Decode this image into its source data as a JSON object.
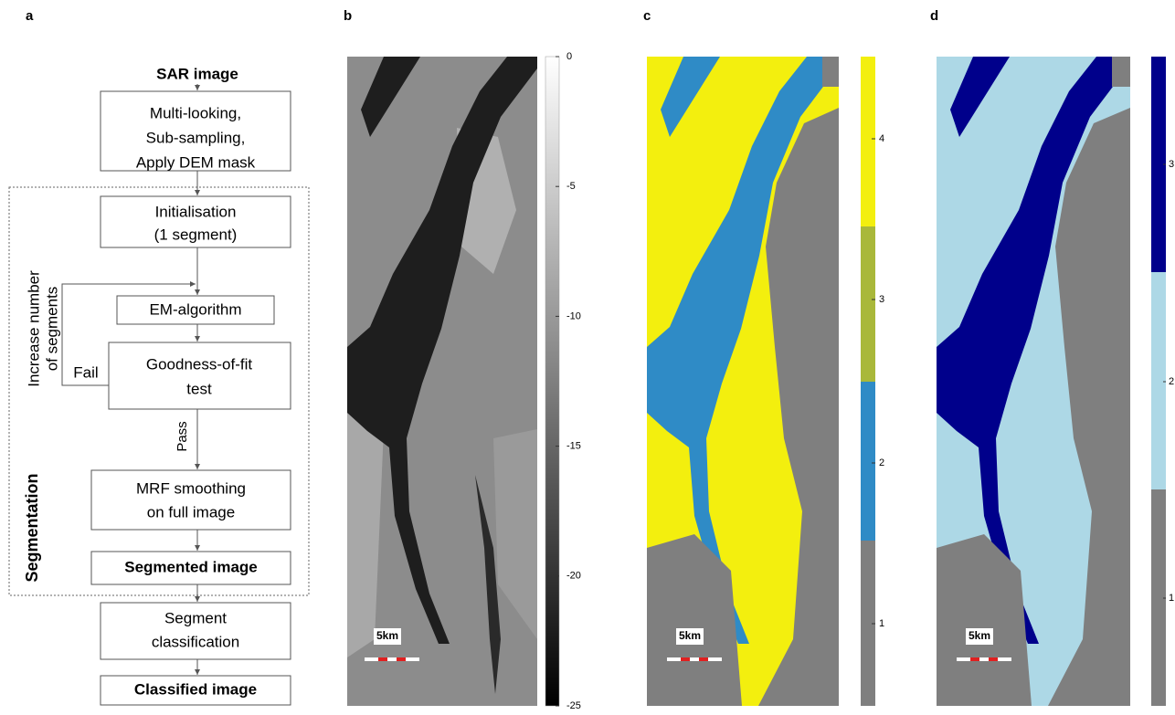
{
  "panel_labels": [
    "a",
    "b",
    "c",
    "d"
  ],
  "flowchart": {
    "input": "SAR image",
    "nodes": [
      {
        "lines": [
          "Multi-looking,",
          "Sub-sampling,",
          "Apply DEM mask"
        ]
      },
      {
        "lines": [
          "Initialisation",
          "(1 segment)"
        ]
      },
      {
        "lines": [
          "EM-algorithm"
        ]
      },
      {
        "lines": [
          "Goodness-of-fit",
          "test"
        ]
      },
      {
        "lines": [
          "MRF smoothing",
          "on full image"
        ]
      },
      {
        "lines": [
          "Segmented image"
        ]
      },
      {
        "lines": [
          "Segment",
          "classification"
        ]
      },
      {
        "lines": [
          "Classified image"
        ]
      }
    ],
    "loop_label": [
      "Increase number",
      "of segments"
    ],
    "fail": "Fail",
    "pass": "Pass",
    "group": "Segmentation"
  },
  "colorbars": {
    "b": {
      "ticks": [
        0,
        -5,
        -10,
        -15,
        -20,
        -25
      ]
    },
    "c": {
      "ticks": [
        4,
        3,
        2,
        1
      ]
    },
    "d": {
      "ticks": [
        3,
        2,
        1
      ]
    }
  },
  "scale_bar": "5km"
}
